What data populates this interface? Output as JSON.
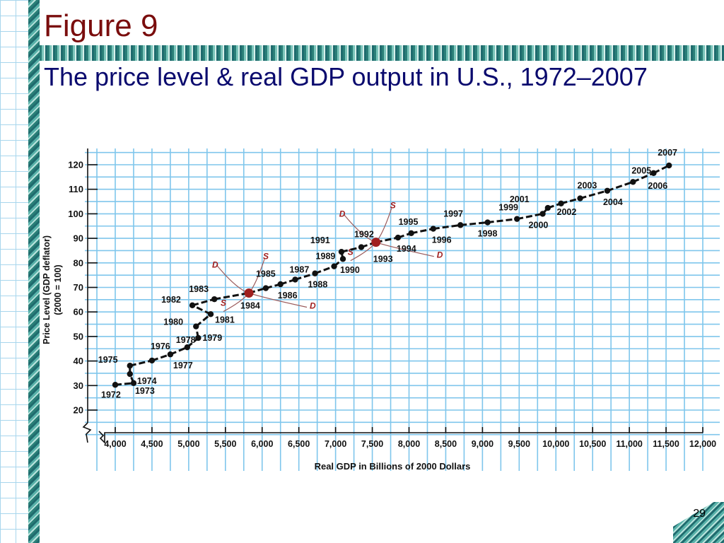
{
  "slide": {
    "title": "Figure 9",
    "subtitle": "The price level & real GDP output in U.S., 1972–2007",
    "page_number": "29"
  },
  "colors": {
    "title": "#7a0d0d",
    "subtitle": "#0a0a6e",
    "equilibrium": "#a01e1e",
    "grid": "#7fc6ec",
    "data": "#111111"
  },
  "chart_data": {
    "type": "scatter",
    "xlabel": "Real GDP in Billions of 2000 Dollars",
    "ylabel_line1": "Price Level (GDP deflator)",
    "ylabel_line2": "(2000 = 100)",
    "xlim": [
      3800,
      12000
    ],
    "ylim": [
      20,
      120
    ],
    "x_ticks": [
      4000,
      4500,
      5000,
      5500,
      6000,
      6500,
      7000,
      7500,
      8000,
      8500,
      9000,
      9500,
      10000,
      10500,
      11000,
      11500,
      12000
    ],
    "x_tick_labels": [
      "4,000",
      "4,500",
      "5,000",
      "5,500",
      "6,000",
      "6,500",
      "7,000",
      "7,500",
      "8,000",
      "8,500",
      "9,000",
      "9,500",
      "10,000",
      "10,500",
      "11,000",
      "11,500",
      "12,000"
    ],
    "y_ticks": [
      20,
      30,
      40,
      50,
      60,
      70,
      80,
      90,
      100,
      110,
      120
    ],
    "grid": true,
    "series": [
      {
        "points": [
          {
            "year": "1972",
            "x": 4000,
            "y": 30.3
          },
          {
            "year": "1973",
            "x": 4250,
            "y": 31.0
          },
          {
            "year": "1974",
            "x": 4200,
            "y": 34.7
          },
          {
            "year": "1975",
            "x": 4200,
            "y": 38.1
          },
          {
            "year": "1976",
            "x": 4500,
            "y": 40.2
          },
          {
            "year": "1977",
            "x": 4750,
            "y": 42.7
          },
          {
            "year": "1978",
            "x": 4980,
            "y": 45.6
          },
          {
            "year": "1979",
            "x": 5130,
            "y": 49.4
          },
          {
            "year": "1980",
            "x": 5100,
            "y": 54.1
          },
          {
            "year": "1981",
            "x": 5300,
            "y": 59.1
          },
          {
            "year": "1982",
            "x": 5050,
            "y": 62.7
          },
          {
            "year": "1983",
            "x": 5350,
            "y": 65.2
          },
          {
            "year": "1984",
            "x": 5820,
            "y": 67.7
          },
          {
            "year": "1985",
            "x": 6050,
            "y": 69.7
          },
          {
            "year": "1986",
            "x": 6250,
            "y": 71.3
          },
          {
            "year": "1987",
            "x": 6450,
            "y": 73.2
          },
          {
            "year": "1988",
            "x": 6720,
            "y": 75.7
          },
          {
            "year": "1989",
            "x": 6980,
            "y": 78.6
          },
          {
            "year": "1990",
            "x": 7100,
            "y": 81.6
          },
          {
            "year": "1991",
            "x": 7080,
            "y": 84.5
          },
          {
            "year": "1992",
            "x": 7350,
            "y": 86.4
          },
          {
            "year": "1993",
            "x": 7550,
            "y": 88.4
          },
          {
            "year": "1994",
            "x": 7850,
            "y": 90.3
          },
          {
            "year": "1995",
            "x": 8030,
            "y": 92.1
          },
          {
            "year": "1996",
            "x": 8330,
            "y": 93.9
          },
          {
            "year": "1997",
            "x": 8700,
            "y": 95.4
          },
          {
            "year": "1998",
            "x": 9070,
            "y": 96.5
          },
          {
            "year": "1999",
            "x": 9470,
            "y": 97.9
          },
          {
            "year": "2000",
            "x": 9820,
            "y": 100.0
          },
          {
            "year": "2001",
            "x": 9890,
            "y": 102.4
          },
          {
            "year": "2002",
            "x": 10070,
            "y": 104.2
          },
          {
            "year": "2003",
            "x": 10330,
            "y": 106.3
          },
          {
            "year": "2004",
            "x": 10700,
            "y": 109.4
          },
          {
            "year": "2005",
            "x": 11050,
            "y": 113.0
          },
          {
            "year": "2006",
            "x": 11330,
            "y": 116.6
          },
          {
            "year": "2007",
            "x": 11540,
            "y": 119.7
          }
        ]
      }
    ],
    "equilibria": [
      {
        "year": "1984",
        "x": 5820,
        "y": 67.7,
        "labels": [
          "D",
          "S",
          "S",
          "D"
        ]
      },
      {
        "year": "1993",
        "x": 7550,
        "y": 88.4,
        "labels": [
          "D",
          "S",
          "S",
          "D"
        ]
      }
    ]
  }
}
